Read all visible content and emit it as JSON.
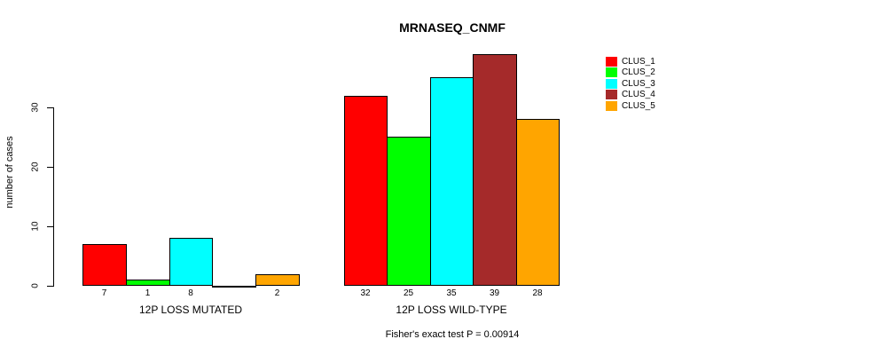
{
  "chart_data": {
    "type": "bar",
    "title": "MRNASEQ_CNMF",
    "ylabel": "number of cases",
    "footnote": "Fisher's exact test P = 0.00914",
    "yticks": [
      0,
      10,
      20,
      30
    ],
    "ylim": [
      0,
      40
    ],
    "grid": false,
    "legend_position": "right",
    "series": [
      {
        "name": "CLUS_1",
        "color": "#FF0000"
      },
      {
        "name": "CLUS_2",
        "color": "#00FF00"
      },
      {
        "name": "CLUS_3",
        "color": "#00FFFF"
      },
      {
        "name": "CLUS_4",
        "color": "#A52A2A"
      },
      {
        "name": "CLUS_5",
        "color": "#FFA500"
      }
    ],
    "groups": [
      {
        "label": "12P LOSS MUTATED",
        "values": [
          7,
          1,
          8,
          0,
          2
        ],
        "bar_labels": [
          "7",
          "1",
          "8",
          "",
          "2"
        ]
      },
      {
        "label": "12P LOSS WILD-TYPE",
        "values": [
          32,
          25,
          35,
          39,
          28
        ],
        "bar_labels": [
          "32",
          "25",
          "35",
          "39",
          "28"
        ]
      }
    ]
  }
}
